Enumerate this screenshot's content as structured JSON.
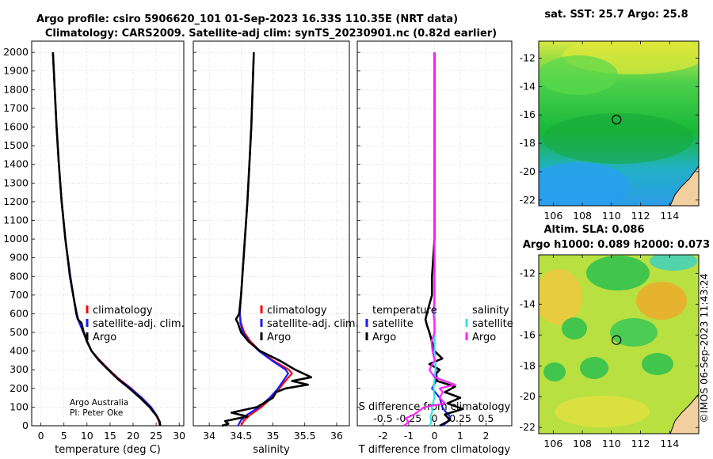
{
  "title_line1": "Argo profile: csiro 5906620_101 01-Sep-2023 16.33S 110.35E (NRT data)",
  "title_line2": "Climatology: CARS2009. Satellite-adj clim: synTS_20230901.nc (0.82d earlier)",
  "credit": {
    "line1": "Argo Australia",
    "line2": "PI: Peter Oke"
  },
  "timestamp": "©IMOS 06-Sep-2023 11:43:24",
  "colors": {
    "climatology": "#ff0000",
    "satellite": "#1a1aff",
    "argo": "#000000",
    "s_sat": "#33e6e6",
    "s_argo": "#ff22ff"
  },
  "chart_data": [
    {
      "id": "temperature",
      "type": "line",
      "xlabel": "temperature (deg C)",
      "ylabel": "",
      "xlim": [
        -2,
        31
      ],
      "ylim": [
        2060,
        0
      ],
      "xticks": [
        0,
        5,
        10,
        15,
        20,
        25,
        30
      ],
      "yticks": [
        0,
        100,
        200,
        300,
        400,
        500,
        600,
        700,
        800,
        900,
        1000,
        1100,
        1200,
        1300,
        1400,
        1500,
        1600,
        1700,
        1800,
        1900,
        2000
      ],
      "grid": true,
      "legend": {
        "position": "center-right",
        "entries": [
          "climatology",
          "satellite-adj. clim.",
          "Argo"
        ]
      },
      "series": [
        {
          "name": "climatology",
          "color_key": "climatology",
          "depth": [
            0,
            30,
            60,
            100,
            150,
            200,
            250,
            300,
            350,
            400,
            500,
            560,
            600,
            700,
            800,
            1000,
            1200,
            1400,
            1600,
            1800,
            2000
          ],
          "values": [
            25.8,
            25.5,
            24.9,
            23.8,
            21.8,
            19.6,
            17.0,
            14.8,
            12.8,
            11.0,
            9.2,
            8.2,
            7.8,
            7.0,
            6.4,
            5.3,
            4.5,
            3.9,
            3.4,
            3.0,
            2.6
          ]
        },
        {
          "name": "satellite-adj. clim.",
          "color_key": "satellite",
          "depth": [
            0,
            30,
            60,
            100,
            150,
            200,
            250,
            300,
            350,
            400,
            500,
            560,
            600,
            700,
            800,
            1000,
            1200,
            1400,
            1600,
            1800,
            2000
          ],
          "values": [
            25.9,
            25.6,
            25.0,
            23.9,
            21.9,
            19.5,
            16.8,
            14.7,
            12.7,
            11.0,
            9.2,
            8.2,
            7.8,
            7.0,
            6.4,
            5.3,
            4.5,
            3.9,
            3.4,
            3.0,
            2.6
          ]
        },
        {
          "name": "Argo",
          "color_key": "argo",
          "depth": [
            0,
            20,
            50,
            80,
            100,
            150,
            200,
            250,
            300,
            350,
            400,
            450,
            500,
            550,
            570,
            600,
            700,
            800,
            1000,
            1200,
            1400,
            1600,
            1800,
            2000
          ],
          "values": [
            25.9,
            25.8,
            25.2,
            24.2,
            23.6,
            21.5,
            19.2,
            16.7,
            14.6,
            12.6,
            11.0,
            10.0,
            9.3,
            8.8,
            8.0,
            7.7,
            7.0,
            6.3,
            5.3,
            4.5,
            3.9,
            3.4,
            3.0,
            2.6
          ]
        }
      ]
    },
    {
      "id": "salinity",
      "type": "line",
      "xlabel": "salinity",
      "xlim": [
        33.75,
        36.2
      ],
      "ylim": [
        2060,
        0
      ],
      "xticks": [
        34,
        34.5,
        35,
        35.5,
        36
      ],
      "grid": true,
      "legend": {
        "position": "center-right",
        "entries": [
          "climatology",
          "satellite-adj. clim.",
          "Argo"
        ]
      },
      "series": [
        {
          "name": "climatology",
          "color_key": "climatology",
          "depth": [
            0,
            30,
            60,
            100,
            150,
            200,
            250,
            280,
            300,
            350,
            400,
            450,
            500,
            550,
            600,
            700,
            800,
            1000,
            1200,
            1400,
            1600,
            1800,
            2000
          ],
          "values": [
            34.5,
            34.55,
            34.65,
            34.82,
            34.98,
            35.1,
            35.22,
            35.3,
            35.25,
            35.0,
            34.8,
            34.65,
            34.55,
            34.5,
            34.48,
            34.5,
            34.52,
            34.56,
            34.6,
            34.63,
            34.66,
            34.68,
            34.7
          ]
        },
        {
          "name": "satellite-adj. clim.",
          "color_key": "satellite",
          "depth": [
            0,
            30,
            60,
            100,
            150,
            200,
            250,
            280,
            300,
            350,
            400,
            450,
            500,
            550,
            600,
            700,
            800,
            1000,
            1200,
            1400,
            1600,
            1800,
            2000
          ],
          "values": [
            34.45,
            34.5,
            34.6,
            34.78,
            34.95,
            35.08,
            35.18,
            35.24,
            35.2,
            34.98,
            34.78,
            34.63,
            34.53,
            34.49,
            34.48,
            34.5,
            34.52,
            34.56,
            34.6,
            34.63,
            34.66,
            34.68,
            34.7
          ]
        },
        {
          "name": "Argo",
          "color_key": "argo",
          "depth": [
            0,
            10,
            25,
            50,
            70,
            100,
            150,
            180,
            200,
            220,
            240,
            260,
            300,
            350,
            400,
            450,
            500,
            550,
            570,
            600,
            700,
            800,
            1000,
            1200,
            1400,
            1600,
            1800,
            2000
          ],
          "values": [
            34.2,
            34.3,
            34.25,
            34.6,
            34.35,
            34.75,
            35.0,
            35.05,
            35.2,
            35.55,
            35.3,
            35.6,
            35.35,
            35.1,
            34.8,
            34.62,
            34.5,
            34.45,
            34.42,
            34.47,
            34.5,
            34.52,
            34.56,
            34.6,
            34.63,
            34.66,
            34.68,
            34.7
          ]
        }
      ]
    },
    {
      "id": "difference",
      "type": "line",
      "xlabel": "T difference from climatology",
      "xlabel2": "S difference from climatology",
      "xlim": [
        -3,
        3
      ],
      "ylim": [
        2060,
        0
      ],
      "xticks": [
        -2,
        -1,
        0,
        1,
        2
      ],
      "xticklabels": [
        "-2",
        "-1",
        "0",
        "1",
        "2"
      ],
      "s_ticks": [
        -0.5,
        -0.25,
        0,
        0.25,
        0.5
      ],
      "s_ticklabels": [
        "-0.5",
        "-0.25",
        "0",
        "0.25",
        "0.5"
      ],
      "grid": true,
      "legend": {
        "position": "center",
        "temperature_title": "temperature",
        "salinity_title": "salinity",
        "entries": [
          "satellite",
          "Argo",
          "satellite",
          "Argo"
        ]
      },
      "series": [
        {
          "name": "T satellite",
          "color_key": "satellite",
          "depth": [
            0,
            20,
            50,
            80,
            100,
            150,
            200,
            250,
            300,
            400,
            500,
            600,
            800,
            1000,
            1500,
            2000
          ],
          "values": [
            0.3,
            0.5,
            0.6,
            0.4,
            0.3,
            0.2,
            -0.1,
            0.1,
            0.05,
            0.0,
            0.0,
            0.0,
            0.0,
            0.0,
            0.0,
            0.0
          ]
        },
        {
          "name": "T Argo",
          "color_key": "argo",
          "depth": [
            0,
            30,
            60,
            90,
            120,
            150,
            180,
            210,
            240,
            270,
            300,
            330,
            360,
            400,
            450,
            500,
            540,
            570,
            600,
            650,
            700,
            800,
            900,
            1000,
            1200,
            1400,
            1600,
            1800,
            2000
          ],
          "values": [
            0.2,
            0.6,
            0.4,
            1.1,
            0.5,
            1.0,
            0.4,
            0.8,
            0.1,
            0.0,
            0.2,
            -0.2,
            0.3,
            0.0,
            -0.1,
            -0.2,
            -0.3,
            -0.35,
            -0.3,
            -0.2,
            -0.1,
            -0.1,
            -0.05,
            0.0,
            0.0,
            0.0,
            0.0,
            0.0,
            0.0
          ]
        },
        {
          "name": "S satellite",
          "color_key": "s_sat",
          "depth": [
            0,
            20,
            50,
            80,
            100,
            150,
            200,
            250,
            300,
            400,
            500,
            600,
            800,
            1000,
            1500,
            2000
          ],
          "values": [
            -0.05,
            -0.03,
            -0.04,
            -0.02,
            -0.03,
            0.0,
            -0.01,
            0.0,
            0.01,
            0.0,
            0.0,
            0.0,
            0.0,
            0.0,
            0.0,
            0.0
          ]
        },
        {
          "name": "S Argo",
          "color_key": "s_argo",
          "depth": [
            0,
            20,
            40,
            60,
            80,
            100,
            120,
            150,
            180,
            200,
            220,
            240,
            260,
            300,
            350,
            400,
            450,
            500,
            550,
            600,
            700,
            800,
            1000,
            1200,
            1500,
            2000
          ],
          "values": [
            -0.3,
            -0.25,
            -0.28,
            -0.2,
            -0.15,
            -0.1,
            0.1,
            0.05,
            0.08,
            0.05,
            0.2,
            0.1,
            0.0,
            -0.05,
            0.0,
            -0.02,
            -0.03,
            0.0,
            0.0,
            -0.01,
            0.0,
            0.0,
            0.0,
            0.0,
            0.0,
            0.0
          ]
        }
      ]
    },
    {
      "id": "sst_map",
      "type": "heatmap",
      "title": "sat. SST: 25.7 Argo: 25.8",
      "xticks": [
        106,
        108,
        110,
        112,
        114
      ],
      "yticks": [
        -12,
        -14,
        -16,
        -18,
        -20,
        -22
      ],
      "xlim": [
        105,
        116
      ],
      "ylim": [
        -10.8,
        -22.4
      ],
      "marker": {
        "lon": 110.35,
        "lat": -16.33
      }
    },
    {
      "id": "sla_map",
      "type": "heatmap",
      "title": "Altim. SLA: 0.086",
      "title2": "Argo h1000: 0.089 h2000: 0.073",
      "xticks": [
        106,
        108,
        110,
        112,
        114
      ],
      "yticks": [
        -12,
        -14,
        -16,
        -18,
        -20,
        -22
      ],
      "xlim": [
        105,
        116
      ],
      "ylim": [
        -10.8,
        -22.4
      ],
      "marker": {
        "lon": 110.35,
        "lat": -16.33
      }
    }
  ]
}
